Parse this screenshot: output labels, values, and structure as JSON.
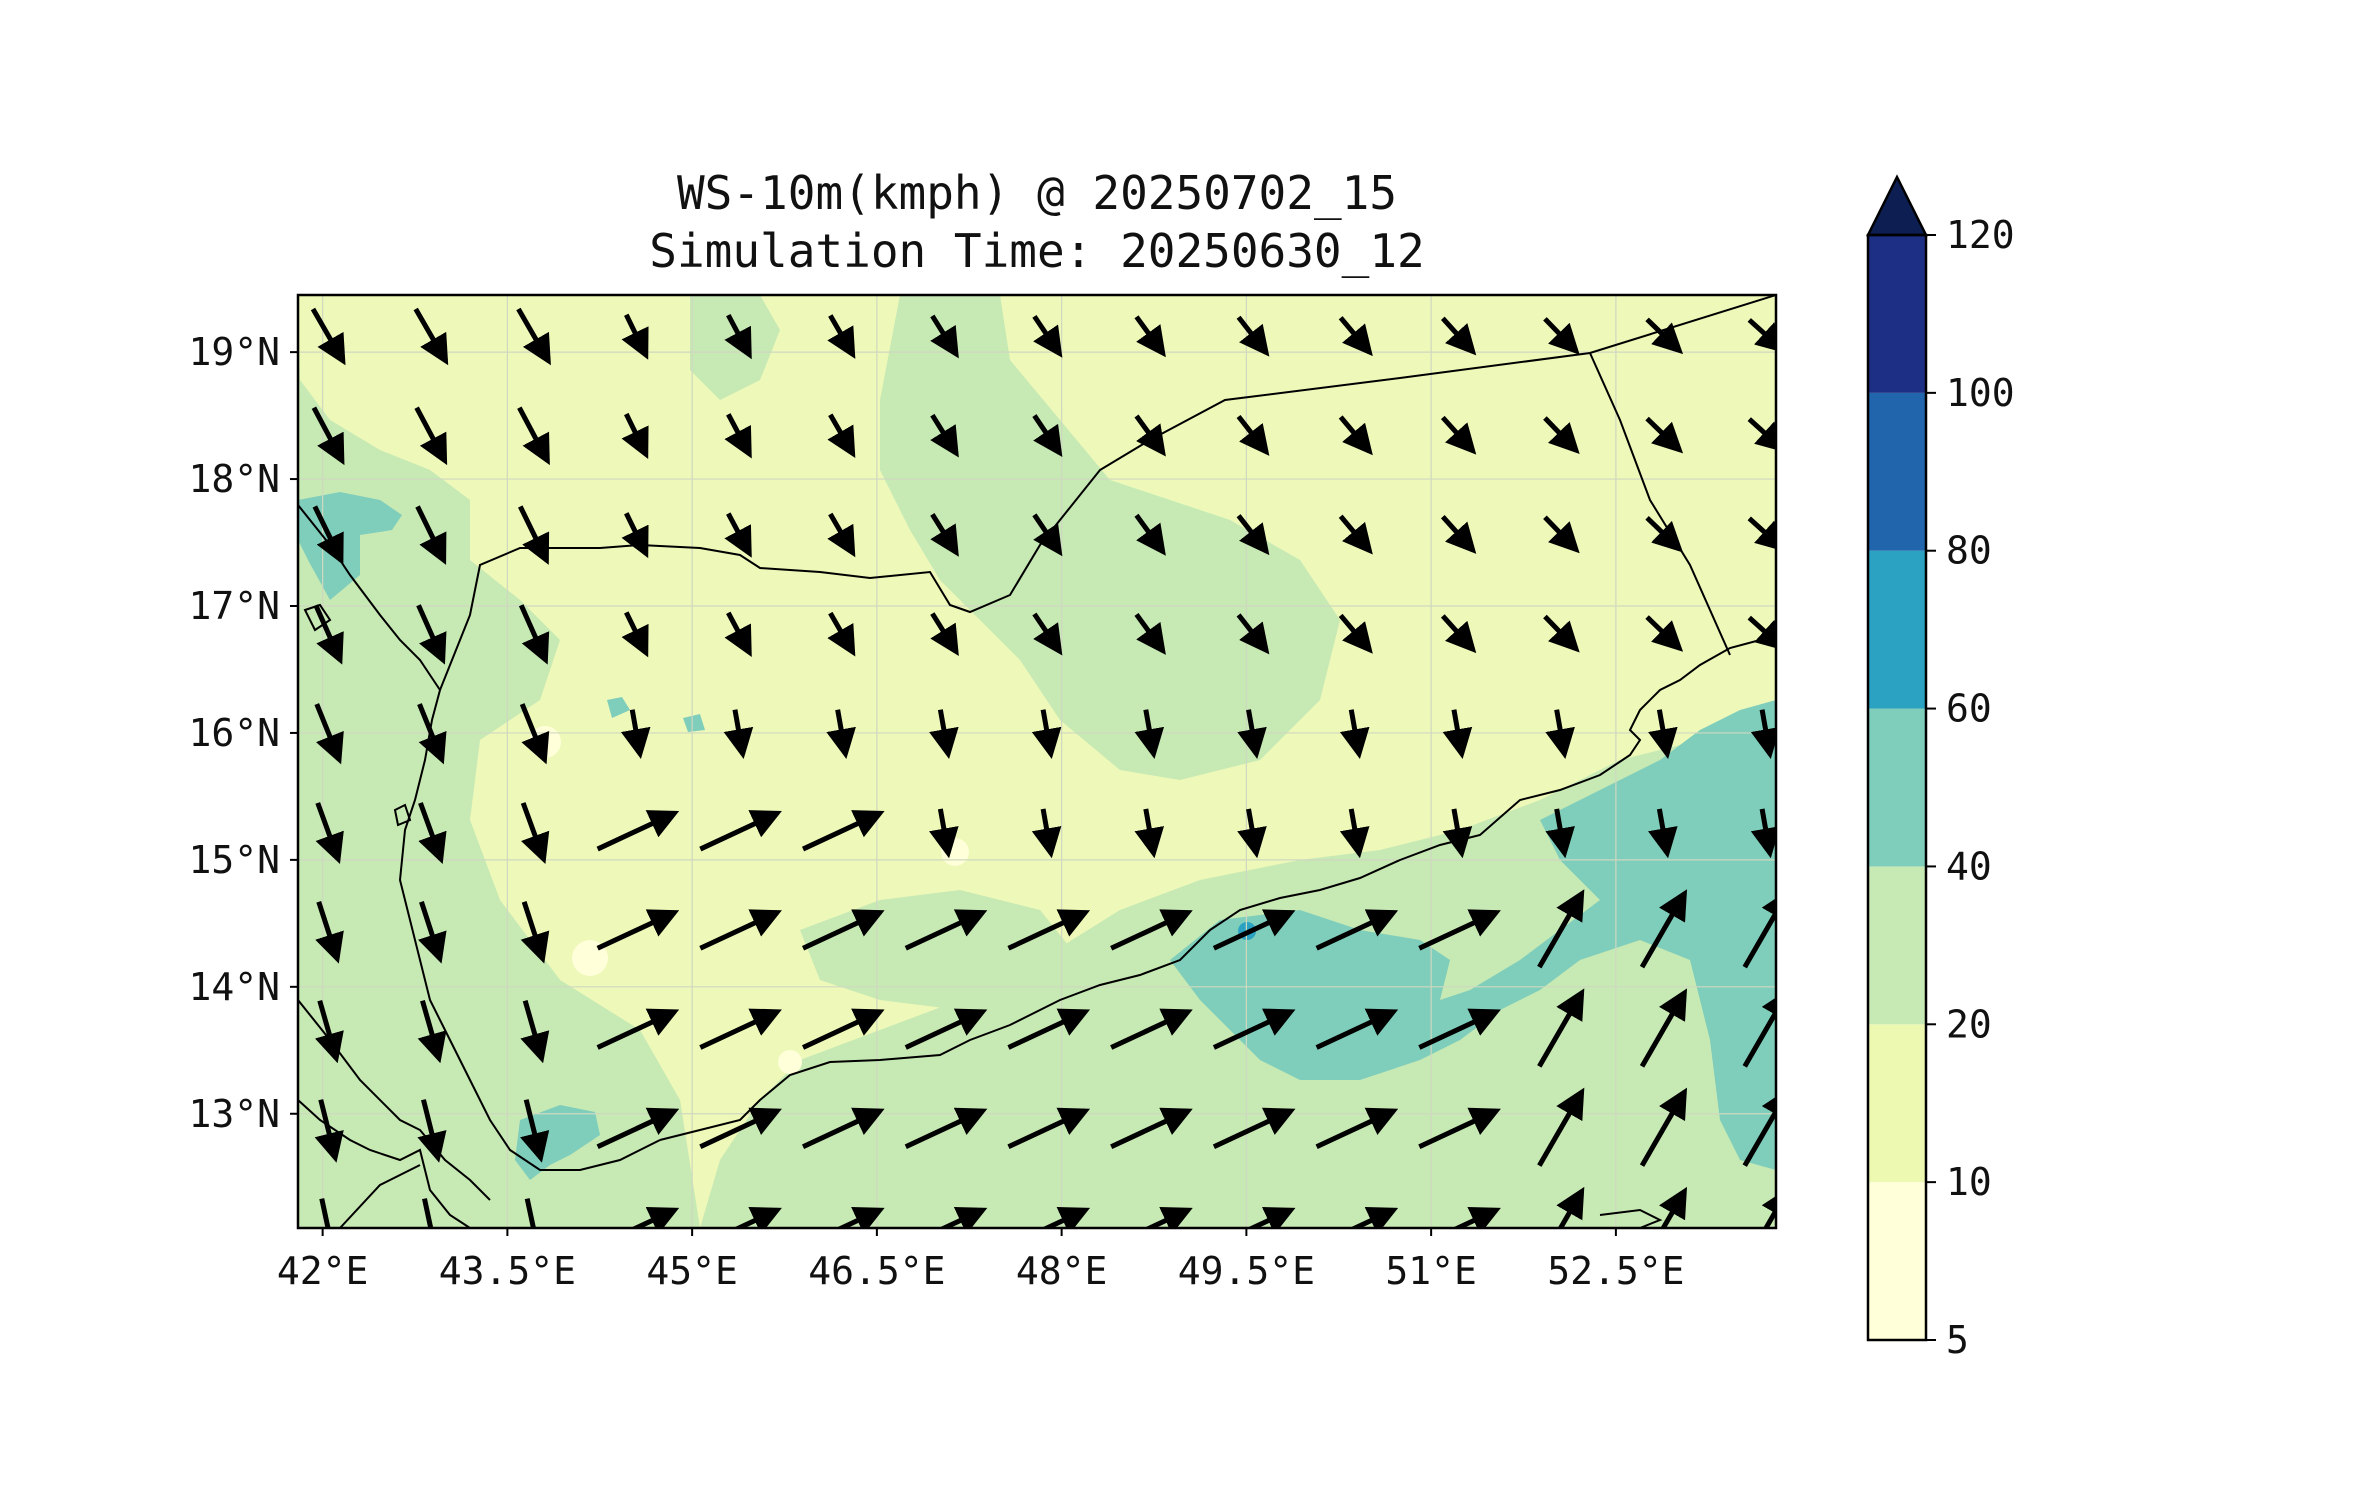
{
  "title_line1": "WS-10m(kmph) @ 20250702_15",
  "title_line2": "Simulation Time: 20250630_12",
  "map": {
    "lon_range": [
      41.8,
      53.8
    ],
    "lat_range": [
      12.1,
      19.45
    ],
    "lon_ticks": [
      {
        "value": 42.0,
        "label": "42°E"
      },
      {
        "value": 43.5,
        "label": "43.5°E"
      },
      {
        "value": 45.0,
        "label": "45°E"
      },
      {
        "value": 46.5,
        "label": "46.5°E"
      },
      {
        "value": 48.0,
        "label": "48°E"
      },
      {
        "value": 49.5,
        "label": "49.5°E"
      },
      {
        "value": 51.0,
        "label": "51°E"
      },
      {
        "value": 52.5,
        "label": "52.5°E"
      }
    ],
    "lat_ticks": [
      {
        "value": 19,
        "label": "19°N"
      },
      {
        "value": 18,
        "label": "18°N"
      },
      {
        "value": 17,
        "label": "17°N"
      },
      {
        "value": 16,
        "label": "16°N"
      },
      {
        "value": 15,
        "label": "15°N"
      },
      {
        "value": 14,
        "label": "14°N"
      },
      {
        "value": 13,
        "label": "13°N"
      }
    ],
    "gridlines": true,
    "background_level_color": "#edf8b9"
  },
  "colorbar": {
    "extend": "max",
    "orientation": "vertical",
    "levels": [
      {
        "from": 5,
        "to": 10,
        "color": "#ffffd9"
      },
      {
        "from": 10,
        "to": 20,
        "color": "#edf8b1"
      },
      {
        "from": 20,
        "to": 40,
        "color": "#c7e9b4"
      },
      {
        "from": 40,
        "to": 60,
        "color": "#7fcdbb"
      },
      {
        "from": 60,
        "to": 80,
        "color": "#2ca2c2"
      },
      {
        "from": 80,
        "to": 100,
        "color": "#2166ac"
      },
      {
        "from": 100,
        "to": 120,
        "color": "#1d2f85"
      }
    ],
    "extend_color": "#0d1e52",
    "tick_labels": [
      "5",
      "10",
      "20",
      "40",
      "60",
      "80",
      "100",
      "120"
    ]
  }
}
